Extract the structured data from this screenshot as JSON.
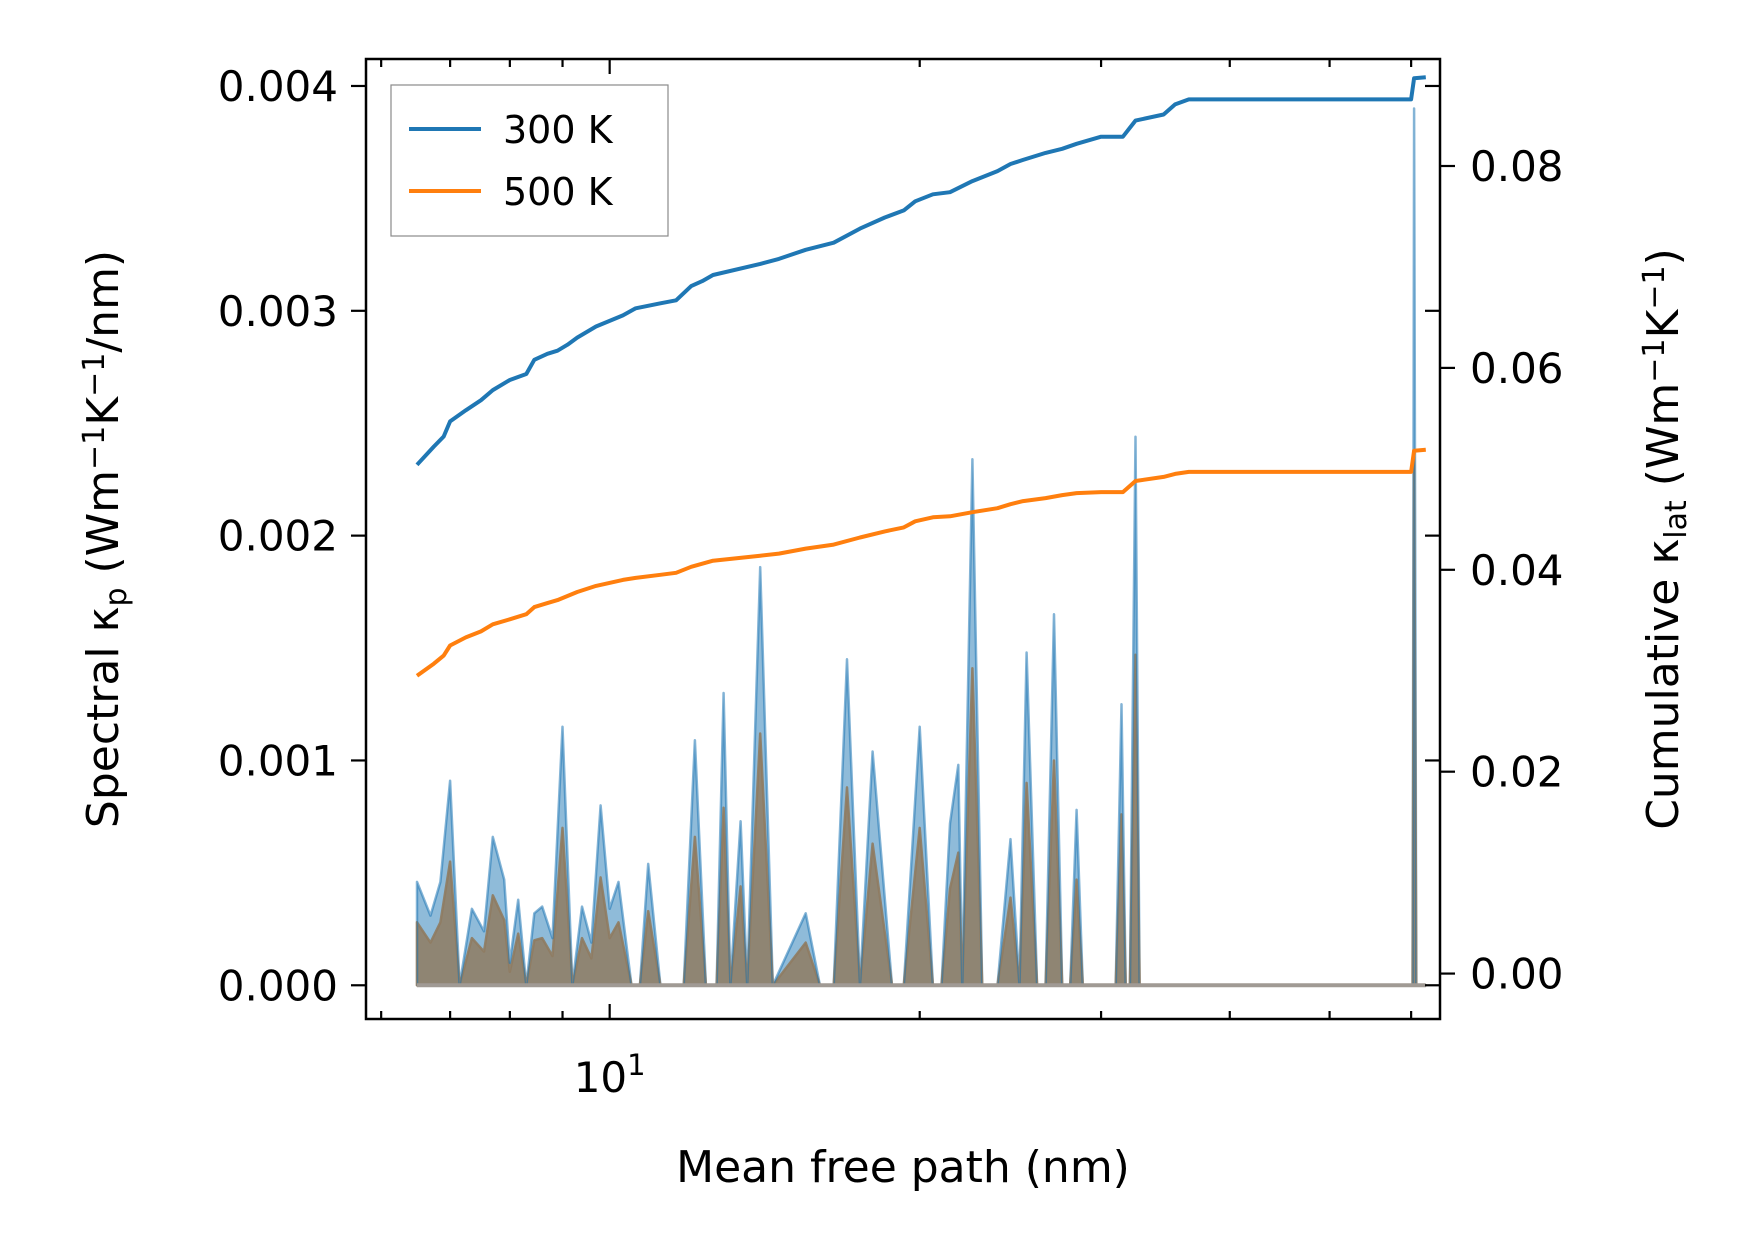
{
  "chart_data": {
    "type": "line",
    "xlabel": "Mean free path (nm)",
    "ylabel": "Spectral κp (Wm−1K−1/nm)",
    "y2label": "Cumulative κlat (Wm−1K−1)",
    "xscale": "log",
    "xlim": [
      5.8,
      64
    ],
    "ylim": [
      -0.00015,
      0.00412
    ],
    "y2lim": [
      -0.0045,
      0.0906
    ],
    "x_tick_labels": [
      {
        "value": 10,
        "base": "10",
        "exp": "1"
      }
    ],
    "y_ticks": [
      0.0,
      0.001,
      0.002,
      0.003,
      0.004
    ],
    "y_tick_labels": [
      "0.000",
      "0.001",
      "0.002",
      "0.003",
      "0.004"
    ],
    "y2_ticks": [
      0.0,
      0.02,
      0.04,
      0.06,
      0.08
    ],
    "y2_tick_labels": [
      "0.00",
      "0.02",
      "0.04",
      "0.06",
      "0.08"
    ],
    "legend": {
      "position": "top-left",
      "entries": [
        "300 K",
        "500 K"
      ]
    },
    "colors": {
      "300 K": "#1f77b4",
      "500 K": "#ff7f0e",
      "fill_overlap": "#b08d6e"
    },
    "series": [
      {
        "name": "300 K",
        "axis": "right",
        "kind": "cumulative",
        "x": [
          6.5,
          6.75,
          6.9,
          7.0,
          7.25,
          7.5,
          7.7,
          8.0,
          8.3,
          8.45,
          8.7,
          8.9,
          9.1,
          9.3,
          9.7,
          10.3,
          10.6,
          11.2,
          11.6,
          12.0,
          12.3,
          12.6,
          14.0,
          14.6,
          15.5,
          16.5,
          17.5,
          18.5,
          19.3,
          19.8,
          20.6,
          21.4,
          22.5,
          23.8,
          24.5,
          25.2,
          26.5,
          27.5,
          28.4,
          30.0,
          31.5,
          32.4,
          34.5,
          35.4,
          36.5,
          60.0,
          60.4,
          62.0
        ],
        "y": [
          0.0504,
          0.0522,
          0.0532,
          0.0547,
          0.0558,
          0.0568,
          0.0578,
          0.0588,
          0.0594,
          0.0608,
          0.0614,
          0.0617,
          0.0623,
          0.063,
          0.0641,
          0.0652,
          0.0659,
          0.0664,
          0.0667,
          0.0681,
          0.0686,
          0.0692,
          0.0703,
          0.0708,
          0.0717,
          0.0724,
          0.0738,
          0.0749,
          0.0756,
          0.0765,
          0.0772,
          0.0774,
          0.0785,
          0.0795,
          0.0802,
          0.0806,
          0.0813,
          0.0817,
          0.0822,
          0.0829,
          0.0829,
          0.0845,
          0.0851,
          0.0861,
          0.0866,
          0.0866,
          0.0887,
          0.0888
        ]
      },
      {
        "name": "500 K",
        "axis": "right",
        "kind": "cumulative",
        "x": [
          6.5,
          6.75,
          6.9,
          7.0,
          7.25,
          7.5,
          7.7,
          8.0,
          8.3,
          8.45,
          8.7,
          8.9,
          9.1,
          9.3,
          9.7,
          10.3,
          10.6,
          11.2,
          11.6,
          12.0,
          12.3,
          12.6,
          14.0,
          14.6,
          15.5,
          16.5,
          17.5,
          18.5,
          19.3,
          19.8,
          20.6,
          21.4,
          22.5,
          23.8,
          24.5,
          25.2,
          26.5,
          27.5,
          28.4,
          30.0,
          31.5,
          32.4,
          34.5,
          35.4,
          36.5,
          60.0,
          60.4,
          62.0
        ],
        "y": [
          0.0295,
          0.0307,
          0.0315,
          0.0325,
          0.0333,
          0.0339,
          0.0346,
          0.0351,
          0.0356,
          0.0363,
          0.0367,
          0.037,
          0.0374,
          0.0378,
          0.0384,
          0.039,
          0.0392,
          0.0395,
          0.0397,
          0.0403,
          0.0406,
          0.0409,
          0.0414,
          0.0416,
          0.0421,
          0.0425,
          0.0432,
          0.0438,
          0.0442,
          0.0448,
          0.0452,
          0.0453,
          0.0457,
          0.0461,
          0.0465,
          0.0468,
          0.0471,
          0.0474,
          0.0476,
          0.0477,
          0.0477,
          0.0488,
          0.0492,
          0.0495,
          0.0497,
          0.0497,
          0.0518,
          0.0519
        ]
      },
      {
        "name": "300 K",
        "axis": "left",
        "kind": "spectral",
        "x": [
          6.5,
          6.7,
          6.85,
          7.0,
          7.15,
          7.35,
          7.55,
          7.7,
          7.9,
          8.0,
          8.15,
          8.3,
          8.45,
          8.6,
          8.8,
          9.0,
          9.2,
          9.4,
          9.6,
          9.8,
          10.0,
          10.2,
          10.5,
          10.7,
          10.9,
          11.2,
          11.5,
          11.8,
          12.1,
          12.4,
          12.7,
          12.9,
          13.1,
          13.4,
          13.6,
          14.0,
          14.4,
          15.5,
          16.0,
          16.5,
          17.0,
          17.5,
          18.0,
          18.8,
          19.3,
          20.0,
          20.6,
          21.0,
          21.4,
          21.8,
          22.0,
          22.5,
          23.0,
          23.4,
          23.8,
          24.5,
          25.0,
          25.4,
          26.0,
          26.5,
          27.0,
          27.5,
          28.0,
          28.4,
          28.8,
          31.0,
          31.4,
          31.7,
          32.0,
          32.4,
          32.7,
          33.0,
          33.4,
          34.0,
          34.5,
          35.0,
          35.4,
          36.0,
          36.5,
          37.0,
          60.0,
          60.2,
          60.4,
          60.7,
          62.0
        ],
        "y": [
          0.00046,
          0.00031,
          0.00046,
          0.00091,
          0.0,
          0.00034,
          0.00024,
          0.00066,
          0.00047,
          0.0001,
          0.00038,
          0.0,
          0.00032,
          0.00035,
          0.00021,
          0.00115,
          0.0,
          0.00035,
          0.00019,
          0.0008,
          0.00034,
          0.00046,
          0.0,
          0.0,
          0.00054,
          0.0,
          0.0,
          0.0,
          0.00109,
          0.0,
          0.0,
          0.0013,
          0.0,
          0.00073,
          0.0,
          0.00186,
          0.0,
          0.00032,
          0.0,
          0.0,
          0.00145,
          0.0,
          0.00104,
          0.0,
          0.0,
          0.00115,
          0.0,
          0.0,
          0.00072,
          0.00098,
          0.0,
          0.00234,
          0.0,
          0.0,
          0.0,
          0.00065,
          0.0,
          0.00148,
          0.0,
          0.0,
          0.00165,
          0.0,
          0.0,
          0.00078,
          0.0,
          0.0,
          0.00125,
          0.0,
          0.0,
          0.00244,
          0.0,
          0.0,
          0.0,
          0.0,
          0.0,
          0.0,
          0.0,
          0.0,
          0.0,
          0.0,
          0.0,
          0.0,
          0.0039,
          0.0,
          0.0
        ]
      },
      {
        "name": "500 K",
        "axis": "left",
        "kind": "spectral",
        "x": [
          6.5,
          6.7,
          6.85,
          7.0,
          7.15,
          7.35,
          7.55,
          7.7,
          7.9,
          8.0,
          8.15,
          8.3,
          8.45,
          8.6,
          8.8,
          9.0,
          9.2,
          9.4,
          9.6,
          9.8,
          10.0,
          10.2,
          10.5,
          10.7,
          10.9,
          11.2,
          11.5,
          11.8,
          12.1,
          12.4,
          12.7,
          12.9,
          13.1,
          13.4,
          13.6,
          14.0,
          14.4,
          15.5,
          16.0,
          16.5,
          17.0,
          17.5,
          18.0,
          18.8,
          19.3,
          20.0,
          20.6,
          21.0,
          21.4,
          21.8,
          22.0,
          22.5,
          23.0,
          23.4,
          23.8,
          24.5,
          25.0,
          25.4,
          26.0,
          26.5,
          27.0,
          27.5,
          28.0,
          28.4,
          28.8,
          31.0,
          31.4,
          31.7,
          32.0,
          32.4,
          32.7,
          33.0,
          33.4,
          34.0,
          34.5,
          35.0,
          35.4,
          36.0,
          36.5,
          37.0,
          60.0,
          60.2,
          60.4,
          60.7,
          62.0
        ],
        "y": [
          0.00028,
          0.00019,
          0.00028,
          0.00055,
          0.0,
          0.00021,
          0.00015,
          0.0004,
          0.00029,
          6e-05,
          0.00023,
          0.0,
          0.0002,
          0.00021,
          0.00013,
          0.0007,
          0.0,
          0.00021,
          0.00012,
          0.00048,
          0.00021,
          0.00028,
          0.0,
          0.0,
          0.00033,
          0.0,
          0.0,
          0.0,
          0.00066,
          0.0,
          0.0,
          0.00079,
          0.0,
          0.00044,
          0.0,
          0.00112,
          0.0,
          0.00019,
          0.0,
          0.0,
          0.00088,
          0.0,
          0.00063,
          0.0,
          0.0,
          0.0007,
          0.0,
          0.0,
          0.00043,
          0.00059,
          0.0,
          0.00141,
          0.0,
          0.0,
          0.0,
          0.00039,
          0.0,
          0.0009,
          0.0,
          0.0,
          0.001,
          0.0,
          0.0,
          0.00047,
          0.0,
          0.0,
          0.00076,
          0.0,
          0.0,
          0.00147,
          0.0,
          0.0,
          0.0,
          0.0,
          0.0,
          0.0,
          0.0,
          0.0,
          0.0,
          0.0,
          0.0,
          0.0,
          0.00235,
          0.0,
          0.0
        ]
      }
    ]
  }
}
